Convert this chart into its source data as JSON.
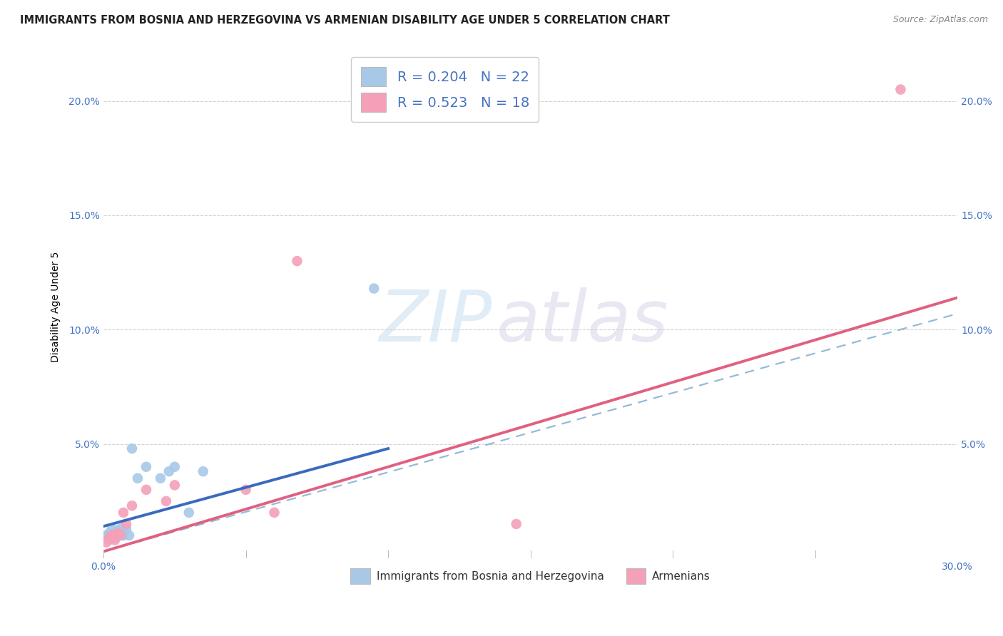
{
  "title": "IMMIGRANTS FROM BOSNIA AND HERZEGOVINA VS ARMENIAN DISABILITY AGE UNDER 5 CORRELATION CHART",
  "source": "Source: ZipAtlas.com",
  "ylabel": "Disability Age Under 5",
  "xlim": [
    0.0,
    0.3
  ],
  "ylim": [
    0.0,
    0.22
  ],
  "xticks": [
    0.0,
    0.05,
    0.1,
    0.15,
    0.2,
    0.25,
    0.3
  ],
  "yticks": [
    0.0,
    0.05,
    0.1,
    0.15,
    0.2
  ],
  "xtick_labels": [
    "0.0%",
    "",
    "",
    "",
    "",
    "",
    "30.0%"
  ],
  "ytick_labels": [
    "",
    "5.0%",
    "10.0%",
    "15.0%",
    "20.0%"
  ],
  "bosnia_x": [
    0.001,
    0.002,
    0.002,
    0.003,
    0.003,
    0.004,
    0.005,
    0.005,
    0.006,
    0.007,
    0.007,
    0.008,
    0.009,
    0.01,
    0.012,
    0.015,
    0.02,
    0.023,
    0.025,
    0.03,
    0.035,
    0.095
  ],
  "bosnia_y": [
    0.01,
    0.011,
    0.008,
    0.013,
    0.01,
    0.009,
    0.012,
    0.01,
    0.013,
    0.011,
    0.01,
    0.013,
    0.01,
    0.048,
    0.035,
    0.04,
    0.035,
    0.038,
    0.04,
    0.02,
    0.038,
    0.118
  ],
  "armenian_x": [
    0.001,
    0.002,
    0.003,
    0.003,
    0.004,
    0.005,
    0.006,
    0.007,
    0.008,
    0.01,
    0.015,
    0.022,
    0.025,
    0.05,
    0.06,
    0.068,
    0.145,
    0.28
  ],
  "armenian_y": [
    0.007,
    0.009,
    0.01,
    0.01,
    0.008,
    0.011,
    0.01,
    0.02,
    0.015,
    0.023,
    0.03,
    0.025,
    0.032,
    0.03,
    0.02,
    0.13,
    0.015,
    0.205
  ],
  "bosnia_color": "#a8c8e8",
  "armenian_color": "#f4a0b8",
  "bosnia_line_color": "#3a6abf",
  "armenian_line_color": "#e06080",
  "dashed_color": "#7aaad0",
  "bosnia_line_x0": 0.0,
  "bosnia_line_y0": 0.014,
  "bosnia_line_x1": 0.1,
  "bosnia_line_y1": 0.048,
  "armenian_line_x0": 0.0,
  "armenian_line_y0": 0.003,
  "armenian_line_x1": 0.3,
  "armenian_line_y1": 0.114,
  "dashed_line_x0": 0.0,
  "dashed_line_y0": 0.003,
  "dashed_line_x1": 0.3,
  "dashed_line_y1": 0.107,
  "bosnia_R": 0.204,
  "bosnia_N": 22,
  "armenian_R": 0.523,
  "armenian_N": 18,
  "legend_label_1": "Immigrants from Bosnia and Herzegovina",
  "legend_label_2": "Armenians",
  "watermark_zip": "ZIP",
  "watermark_atlas": "atlas",
  "marker_size": 110,
  "title_fontsize": 10.5,
  "axis_label_fontsize": 10,
  "tick_fontsize": 10,
  "legend_fontsize": 14
}
